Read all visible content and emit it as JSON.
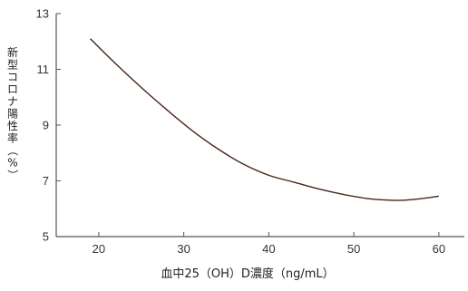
{
  "chart_data": {
    "type": "line",
    "title": "",
    "xlabel": "血中25（OH）D濃度（ng/mL）",
    "ylabel": "新型コロナ陽性率（%）",
    "xlim": [
      15,
      63
    ],
    "ylim": [
      5,
      13
    ],
    "xticks": [
      20,
      30,
      40,
      50,
      60
    ],
    "yticks": [
      5,
      7,
      9,
      11,
      13
    ],
    "grid": false,
    "legend": "none",
    "line_color": "#4a2418",
    "series": [
      {
        "x": [
          19,
          22,
          25,
          28,
          31,
          34,
          37,
          40,
          43,
          46,
          49,
          52,
          55,
          57,
          60
        ],
        "y": [
          12.1,
          11.2,
          10.35,
          9.55,
          8.8,
          8.15,
          7.6,
          7.2,
          6.95,
          6.7,
          6.5,
          6.35,
          6.3,
          6.33,
          6.45
        ]
      }
    ]
  }
}
